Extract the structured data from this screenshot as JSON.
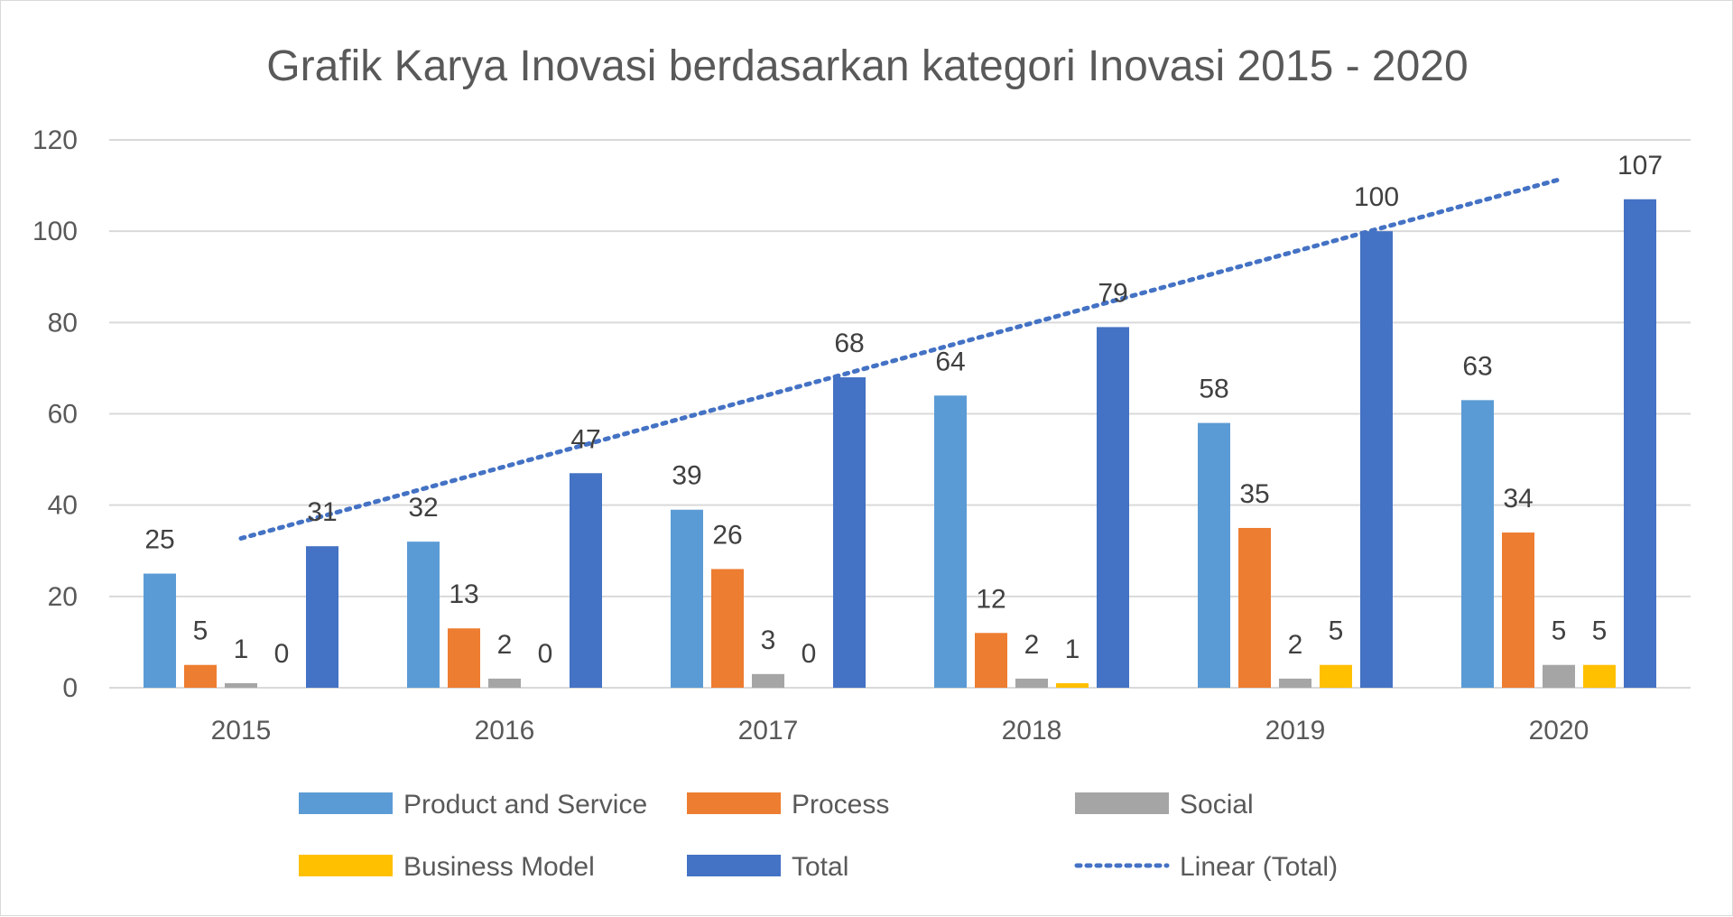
{
  "chart_data": {
    "type": "bar",
    "title": "Grafik Karya Inovasi berdasarkan kategori Inovasi 2015 - 2020",
    "categories": [
      "2015",
      "2016",
      "2017",
      "2018",
      "2019",
      "2020"
    ],
    "series": [
      {
        "name": "Product and Service",
        "values": [
          25,
          32,
          39,
          64,
          58,
          63
        ],
        "color": "#5b9bd5"
      },
      {
        "name": "Process",
        "values": [
          5,
          13,
          26,
          12,
          35,
          34
        ],
        "color": "#ed7d31"
      },
      {
        "name": "Social",
        "values": [
          1,
          2,
          3,
          2,
          2,
          5
        ],
        "color": "#a5a5a5"
      },
      {
        "name": "Business Model",
        "values": [
          0,
          0,
          0,
          1,
          5,
          5
        ],
        "color": "#ffc000"
      },
      {
        "name": "Total",
        "values": [
          31,
          47,
          68,
          79,
          100,
          107
        ],
        "color": "#4472c4"
      }
    ],
    "trendline": {
      "name": "Linear (Total)",
      "series": "Total",
      "type": "linear",
      "style": "dotted",
      "color": "#4472c4"
    },
    "ylim": [
      0,
      120
    ],
    "yticks": [
      "0",
      "20",
      "40",
      "60",
      "80",
      "100",
      "120"
    ],
    "xlabel": "",
    "ylabel": "",
    "grid": true,
    "legend_position": "bottom",
    "data_labels": true
  }
}
